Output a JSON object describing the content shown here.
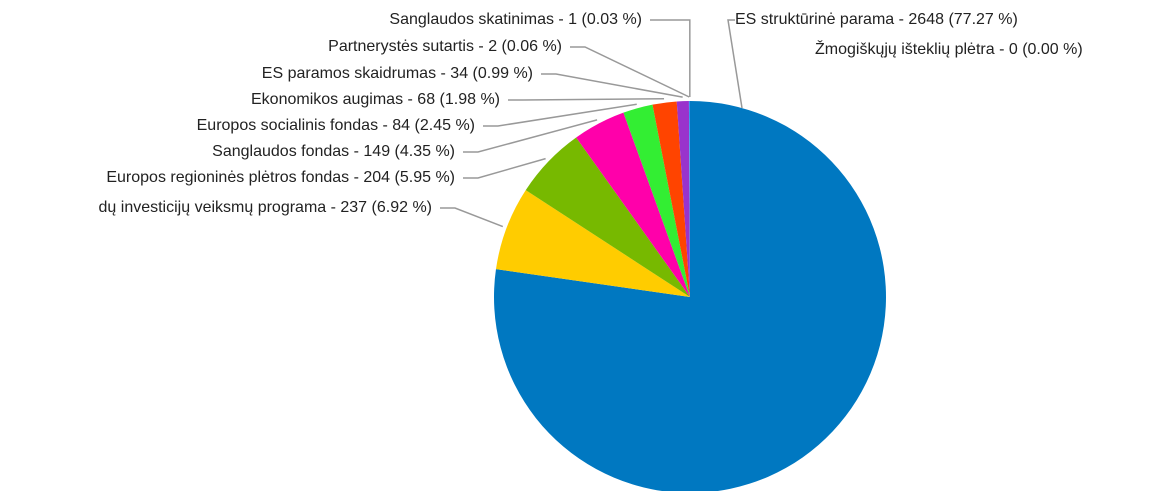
{
  "chart_data": {
    "type": "pie",
    "value_labels": [
      "ES struktūrinė parama - 2648 (77.27 %)",
      "dų investicijų veiksmų programa - 237 (6.92 %)",
      "Europos regioninės plėtros fondas - 204 (5.95 %)",
      "Sanglaudos fondas - 149 (4.35 %)",
      "Europos socialinis fondas - 84 (2.45 %)",
      "Ekonomikos augimas - 68 (1.98 %)",
      "ES paramos skaidrumas - 34 (0.99 %)",
      "Partnerystės sutartis - 2 (0.06 %)",
      "Sanglaudos skatinimas - 1 (0.03 %)",
      "Žmogiškųjų išteklių plėtra - 0 (0.00 %)"
    ],
    "values": [
      2648,
      237,
      204,
      149,
      84,
      68,
      34,
      2,
      1,
      0
    ],
    "colors": [
      "#0078c1",
      "#ffcc00",
      "#77b900",
      "#ff00aa",
      "#33ee33",
      "#ff4400",
      "#9933cc",
      "#3366ff",
      "#00cccc",
      "#999999"
    ]
  }
}
